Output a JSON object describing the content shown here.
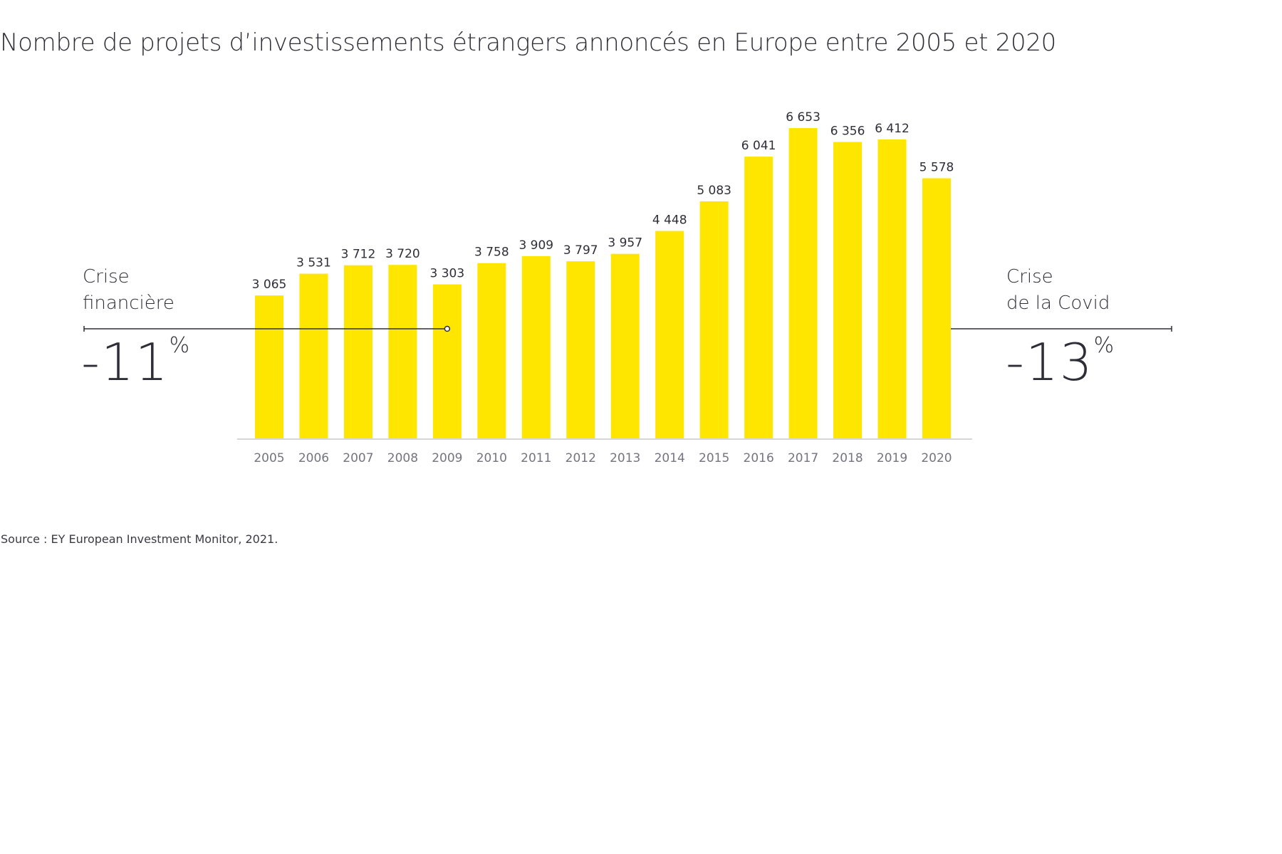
{
  "chart_data": {
    "type": "bar",
    "title": "Nombre de projets d’investissements étrangers annoncés en Europe entre 2005 et 2020",
    "xlabel": "",
    "ylabel": "",
    "ylim": [
      0,
      6653
    ],
    "grid": false,
    "categories": [
      "2005",
      "2006",
      "2007",
      "2008",
      "2009",
      "2010",
      "2011",
      "2012",
      "2013",
      "2014",
      "2015",
      "2016",
      "2017",
      "2018",
      "2019",
      "2020"
    ],
    "values": [
      3065,
      3531,
      3712,
      3720,
      3303,
      3758,
      3909,
      3797,
      3957,
      4448,
      5083,
      6041,
      6653,
      6356,
      6412,
      5578
    ],
    "value_labels": [
      "3 065",
      "3 531",
      "3 712",
      "3 720",
      "3 303",
      "3 758",
      "3 909",
      "3 797",
      "3 957",
      "4 448",
      "5 083",
      "6 041",
      "6 653",
      "6 356",
      "6 412",
      "5 578"
    ],
    "bar_color": "#ffe600",
    "annotations": [
      {
        "label_line1": "Crise",
        "label_line2": "financière",
        "value": "-11",
        "unit": "%",
        "from": "2008",
        "to": "2009"
      },
      {
        "label_line1": "Crise",
        "label_line2": "de la Covid",
        "value": "-13",
        "unit": "%",
        "from": "2019",
        "to": "2020"
      }
    ],
    "source": "Source : EY European Investment Monitor, 2021."
  },
  "colors": {
    "text": "#2e2e38",
    "axis_label": "#747480",
    "axis_line": "#d6d6d6",
    "annotation_line": "#2e2e38"
  }
}
